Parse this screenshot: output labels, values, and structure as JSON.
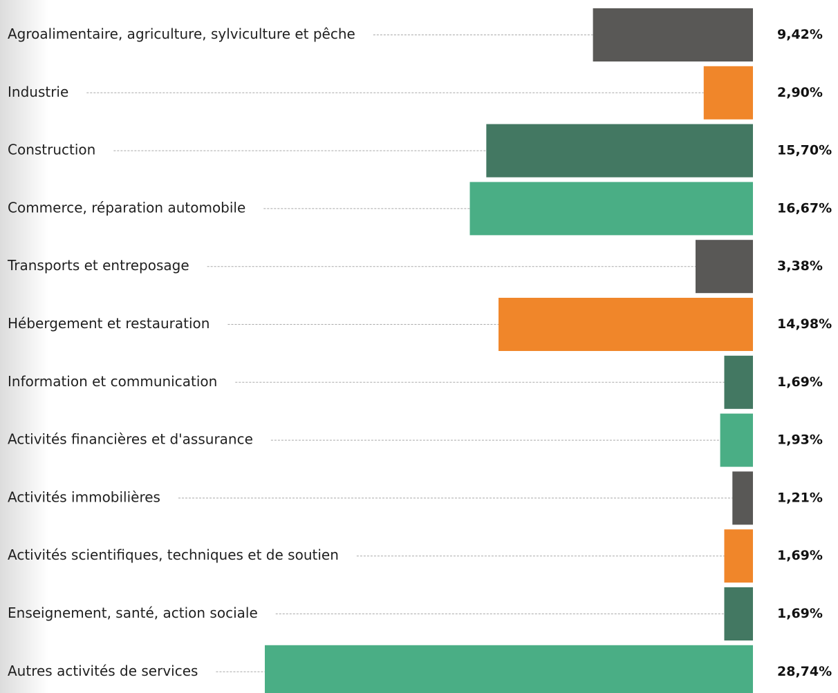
{
  "chart_data": {
    "type": "bar",
    "orientation": "horizontal",
    "categories": [
      "Agroalimentaire, agriculture, sylviculture et pêche",
      "Industrie",
      "Construction",
      "Commerce, réparation automobile",
      "Transports et entreposage",
      "Hébergement et restauration",
      "Information et communication",
      "Activités financières et d'assurance",
      "Activités immobilières",
      "Activités scientifiques, techniques et de soutien",
      "Enseignement, santé, action sociale",
      "Autres activités de services"
    ],
    "values": [
      9.42,
      2.9,
      15.7,
      16.67,
      3.38,
      14.98,
      1.69,
      1.93,
      1.21,
      1.69,
      1.69,
      28.74
    ],
    "value_labels": [
      "9,42%",
      "2,90%",
      "15,70%",
      "16,67%",
      "3,38%",
      "14,98%",
      "1,69%",
      "1,93%",
      "1,21%",
      "1,69%",
      "1,69%",
      "28,74%"
    ],
    "colors": [
      "#595856",
      "#f0862a",
      "#437862",
      "#4aae85",
      "#595856",
      "#f0862a",
      "#437862",
      "#4aae85",
      "#595856",
      "#f0862a",
      "#437862",
      "#4aae85"
    ]
  }
}
